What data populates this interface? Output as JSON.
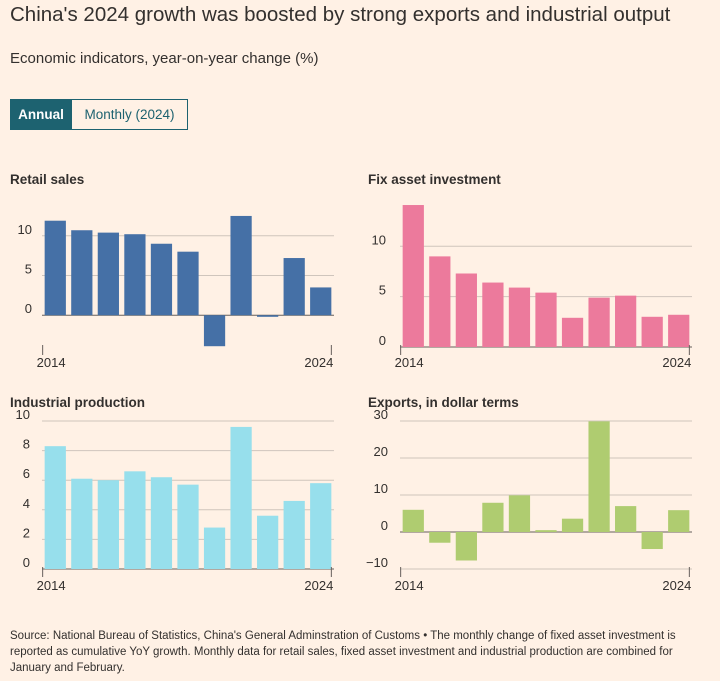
{
  "header": {
    "title": "China's 2024 growth was boosted by strong exports and industrial output",
    "subtitle": "Economic indicators, year-on-year change (%)"
  },
  "toggle": {
    "options": [
      "Annual",
      "Monthly (2024)"
    ],
    "selected": "Annual"
  },
  "colors": {
    "background": "#FFF1E5",
    "toggle_active": "#1D6270",
    "retail": "#4570A6",
    "fixed": "#EC7A9C",
    "industrial": "#97DFEC",
    "exports": "#AFCC70",
    "grid": "#CFC5BC",
    "text": "#33302E"
  },
  "chart_data": [
    {
      "id": "retail",
      "type": "bar",
      "title": "Retail sales",
      "color": "#4570A6",
      "x": [
        2014,
        2015,
        2016,
        2017,
        2018,
        2019,
        2020,
        2021,
        2022,
        2023,
        2024
      ],
      "values": [
        11.9,
        10.7,
        10.4,
        10.2,
        9.0,
        8.0,
        -3.9,
        12.5,
        -0.2,
        7.2,
        3.5
      ],
      "yticks": [
        0,
        5,
        10
      ],
      "ylim": [
        -4,
        13.5
      ],
      "xticks": [
        "2014",
        "2024"
      ]
    },
    {
      "id": "fixed",
      "type": "bar",
      "title": "Fix asset investment",
      "color": "#EC7A9C",
      "x": [
        2014,
        2015,
        2016,
        2017,
        2018,
        2019,
        2020,
        2021,
        2022,
        2023,
        2024
      ],
      "values": [
        14.1,
        9.0,
        7.3,
        6.4,
        5.9,
        5.4,
        2.9,
        4.9,
        5.1,
        3.0,
        3.2
      ],
      "yticks": [
        0,
        5,
        10
      ],
      "ylim": [
        0,
        14.5
      ],
      "xticks": [
        "2014",
        "2024"
      ]
    },
    {
      "id": "industrial",
      "type": "bar",
      "title": "Industrial production",
      "color": "#97DFEC",
      "x": [
        2014,
        2015,
        2016,
        2017,
        2018,
        2019,
        2020,
        2021,
        2022,
        2023,
        2024
      ],
      "values": [
        8.3,
        6.1,
        6.0,
        6.6,
        6.2,
        5.7,
        2.8,
        9.6,
        3.6,
        4.6,
        5.8
      ],
      "yticks": [
        0,
        2,
        4,
        6,
        8,
        10
      ],
      "ylim": [
        0,
        10
      ],
      "xticks": [
        "2014",
        "2024"
      ]
    },
    {
      "id": "exports",
      "type": "bar",
      "title": "Exports, in dollar terms",
      "color": "#AFCC70",
      "x": [
        2014,
        2015,
        2016,
        2017,
        2018,
        2019,
        2020,
        2021,
        2022,
        2023,
        2024
      ],
      "values": [
        6.0,
        -2.9,
        -7.7,
        7.9,
        9.9,
        0.5,
        3.6,
        29.9,
        7.0,
        -4.6,
        5.9
      ],
      "yticks": [
        -10,
        0,
        10,
        20,
        30
      ],
      "ylim": [
        -10,
        30
      ],
      "xticks": [
        "2014",
        "2024"
      ]
    }
  ],
  "source": "Source: National Bureau of Statistics, China's General Adminstration of Customs • The monthly change of fixed asset investment is reported as cumulative YoY growth. Monthly data for retail sales, fixed asset investment and industrial production are combined for January and February."
}
